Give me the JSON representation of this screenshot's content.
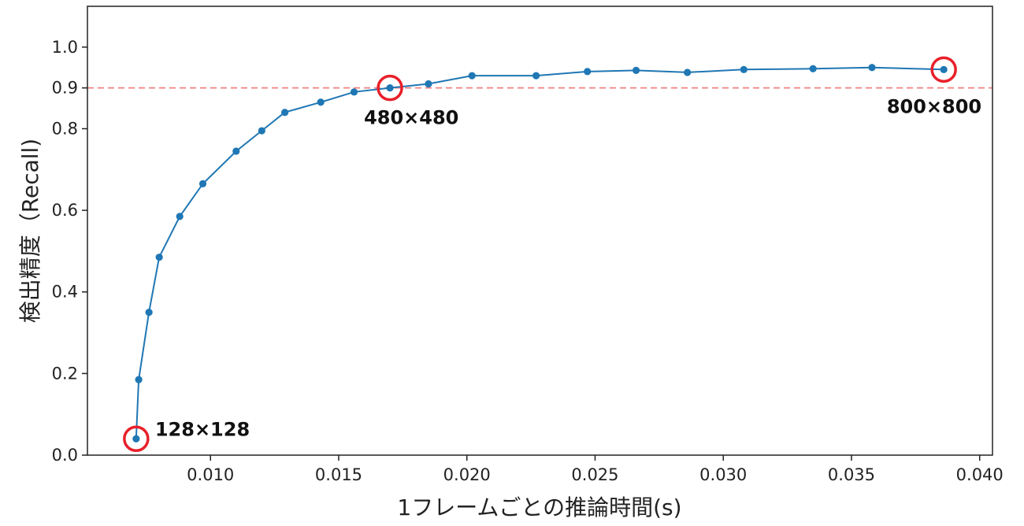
{
  "chart_data": {
    "type": "line",
    "xlabel": "1フレームごとの推論時間(s)",
    "ylabel": "検出精度（Recall)",
    "xlim": [
      0.0052,
      0.0405
    ],
    "ylim": [
      0.0,
      1.1
    ],
    "x_ticks": [
      {
        "value": 0.01,
        "label": "0.010"
      },
      {
        "value": 0.015,
        "label": "0.015"
      },
      {
        "value": 0.02,
        "label": "0.020"
      },
      {
        "value": 0.025,
        "label": "0.025"
      },
      {
        "value": 0.03,
        "label": "0.030"
      },
      {
        "value": 0.035,
        "label": "0.035"
      },
      {
        "value": 0.04,
        "label": "0.040"
      }
    ],
    "y_ticks": [
      {
        "value": 0.0,
        "label": "0.0"
      },
      {
        "value": 0.2,
        "label": "0.2"
      },
      {
        "value": 0.4,
        "label": "0.4"
      },
      {
        "value": 0.6,
        "label": "0.6"
      },
      {
        "value": 0.8,
        "label": "0.8"
      },
      {
        "value": 0.9,
        "label": "0.9"
      },
      {
        "value": 1.0,
        "label": "1.0"
      }
    ],
    "grid": false,
    "reference_line": {
      "y": 0.9,
      "color": "#f08080",
      "style": "dashed"
    },
    "series": [
      {
        "color": "#1f77b4",
        "x": [
          0.0071,
          0.0072,
          0.0076,
          0.008,
          0.0088,
          0.0097,
          0.011,
          0.012,
          0.0129,
          0.0143,
          0.0156,
          0.017,
          0.0185,
          0.0202,
          0.0227,
          0.0247,
          0.0266,
          0.0286,
          0.0308,
          0.0335,
          0.0358,
          0.0386
        ],
        "y": [
          0.04,
          0.185,
          0.35,
          0.485,
          0.585,
          0.665,
          0.745,
          0.795,
          0.84,
          0.865,
          0.89,
          0.9,
          0.91,
          0.93,
          0.93,
          0.94,
          0.943,
          0.938,
          0.945,
          0.947,
          0.95,
          0.945
        ]
      }
    ],
    "highlights": [
      {
        "x": 0.0071,
        "y": 0.04,
        "label": "128×128",
        "label_side": "upper-right"
      },
      {
        "x": 0.017,
        "y": 0.9,
        "label": "480×480",
        "label_side": "below"
      },
      {
        "x": 0.0386,
        "y": 0.945,
        "label": "800×800",
        "label_side": "below-left"
      }
    ],
    "highlight_color": "#e8202a"
  }
}
